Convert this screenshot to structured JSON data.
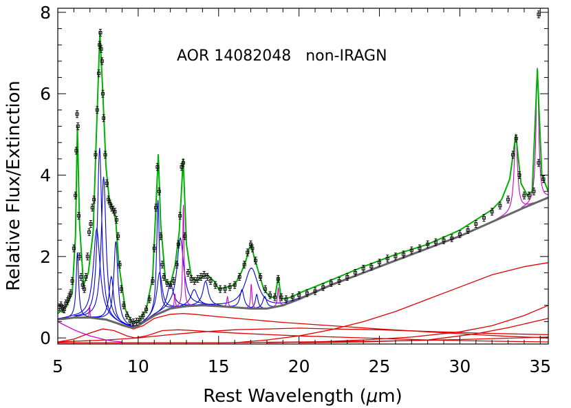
{
  "chart_data": {
    "type": "line",
    "annotation": "AOR 14082048   non-IRAGN",
    "xlabel_prefix": "Rest Wavelength (",
    "xlabel_mu": "μ",
    "xlabel_suffix": "m)",
    "ylabel": "Relative Flux/Extinction",
    "xlim": [
      5,
      35.5
    ],
    "ylim": [
      -0.15,
      8.1
    ],
    "xticks": [
      5,
      10,
      15,
      20,
      25,
      30,
      35
    ],
    "yticks": [
      0,
      2,
      4,
      6,
      8
    ],
    "grid": false,
    "legend": "none",
    "colors": {
      "total_model": "#00b000",
      "pah_features": "#0000dd",
      "emission_lines": "#cc00cc",
      "continuum_total": "#666666",
      "continuum_components": "#dd0000",
      "data_points": "#000000"
    },
    "series": [
      {
        "role": "continuum_total",
        "x": [
          5,
          6,
          7,
          8,
          9,
          9.6,
          10,
          11,
          12,
          13,
          14,
          15,
          16,
          17,
          18,
          19,
          20,
          22,
          24,
          26,
          28,
          30,
          32,
          34,
          35.5
        ],
        "y": [
          0.45,
          0.5,
          0.5,
          0.45,
          0.32,
          0.25,
          0.3,
          0.55,
          0.72,
          0.78,
          0.8,
          0.78,
          0.75,
          0.72,
          0.72,
          0.8,
          0.95,
          1.3,
          1.6,
          1.9,
          2.2,
          2.5,
          2.85,
          3.2,
          3.45
        ]
      },
      {
        "role": "total_model",
        "x": [
          5,
          5.5,
          5.9,
          6.1,
          6.22,
          6.35,
          6.6,
          6.9,
          7.2,
          7.4,
          7.62,
          7.8,
          8.0,
          8.2,
          8.4,
          8.6,
          8.8,
          9.2,
          9.6,
          10.0,
          10.5,
          10.9,
          11.1,
          11.25,
          11.4,
          11.7,
          12.0,
          12.3,
          12.55,
          12.8,
          13.0,
          13.3,
          13.6,
          14.0,
          14.3,
          14.7,
          15.0,
          15.5,
          16.0,
          16.4,
          16.7,
          16.9,
          17.03,
          17.2,
          17.5,
          17.8,
          18.2,
          18.5,
          18.71,
          18.9,
          19.5,
          20,
          22,
          24,
          26,
          28,
          30,
          31,
          32,
          32.6,
          33.1,
          33.48,
          33.8,
          34.2,
          34.5,
          34.82,
          35.1,
          35.5
        ],
        "y": [
          0.6,
          0.75,
          1.1,
          2.5,
          5.2,
          2.8,
          1.3,
          1.6,
          2.6,
          5.0,
          7.5,
          6.0,
          4.2,
          3.4,
          3.2,
          2.9,
          1.8,
          0.7,
          0.4,
          0.38,
          0.7,
          1.5,
          3.2,
          4.5,
          2.8,
          1.4,
          1.3,
          1.8,
          2.6,
          4.4,
          2.3,
          1.5,
          1.4,
          1.5,
          1.55,
          1.4,
          1.2,
          1.25,
          1.3,
          1.6,
          1.9,
          2.2,
          2.3,
          2.0,
          1.6,
          1.2,
          1.0,
          1.0,
          1.5,
          0.95,
          1.0,
          1.1,
          1.42,
          1.75,
          2.05,
          2.3,
          2.65,
          2.9,
          3.15,
          3.4,
          3.9,
          5.0,
          3.8,
          3.5,
          3.6,
          6.6,
          4.0,
          3.6
        ]
      }
    ],
    "pah_features": [
      {
        "center": 6.22,
        "height": 1.6,
        "width": 0.18
      },
      {
        "center": 7.42,
        "height": 2.2,
        "width": 0.5
      },
      {
        "center": 7.6,
        "height": 4.2,
        "width": 0.32
      },
      {
        "center": 7.85,
        "height": 3.5,
        "width": 0.35
      },
      {
        "center": 8.33,
        "height": 1.1,
        "width": 0.35
      },
      {
        "center": 8.61,
        "height": 2.0,
        "width": 0.3
      },
      {
        "center": 11.23,
        "height": 2.8,
        "width": 0.2
      },
      {
        "center": 11.33,
        "height": 1.0,
        "width": 0.4
      },
      {
        "center": 12.0,
        "height": 0.6,
        "width": 0.5
      },
      {
        "center": 12.62,
        "height": 1.7,
        "width": 0.5
      },
      {
        "center": 13.48,
        "height": 0.4,
        "width": 0.5
      },
      {
        "center": 14.19,
        "height": 0.6,
        "width": 0.4
      },
      {
        "center": 16.45,
        "height": 0.45,
        "width": 0.3
      },
      {
        "center": 17.04,
        "height": 1.0,
        "width": 1.0
      },
      {
        "center": 17.37,
        "height": 0.35,
        "width": 0.2
      },
      {
        "center": 17.87,
        "height": 0.3,
        "width": 0.3
      }
    ],
    "emission_lines": [
      {
        "center": 6.98,
        "height": 0.3,
        "width": 0.05
      },
      {
        "center": 9.66,
        "height": 0.1,
        "width": 0.05
      },
      {
        "center": 12.28,
        "height": 0.35,
        "width": 0.08
      },
      {
        "center": 12.81,
        "height": 2.5,
        "width": 0.1
      },
      {
        "center": 15.55,
        "height": 0.25,
        "width": 0.1
      },
      {
        "center": 17.03,
        "height": 0.6,
        "width": 0.1
      },
      {
        "center": 18.71,
        "height": 0.45,
        "width": 0.12
      },
      {
        "center": 33.48,
        "height": 1.9,
        "width": 0.25
      },
      {
        "center": 34.82,
        "height": 3.3,
        "width": 0.2
      }
    ],
    "continuum_components": [
      {
        "x": [
          5,
          6,
          7,
          7.8,
          8.5,
          9.3,
          9.8,
          10.5,
          11.5,
          12.5,
          13.5,
          15,
          17,
          20,
          24,
          28,
          32,
          35.5
        ],
        "y": [
          -0.1,
          -0.03,
          0.12,
          0.22,
          0.18,
          0.05,
          0.0,
          0.05,
          0.18,
          0.2,
          0.18,
          0.14,
          0.1,
          0.05,
          0.0,
          -0.05,
          -0.08,
          -0.1
        ]
      },
      {
        "x": [
          5,
          6,
          7,
          8,
          9,
          9.7,
          10.3,
          11,
          12,
          12.8,
          13.5,
          15,
          17,
          19,
          22,
          25,
          28,
          31,
          33,
          35.5
        ],
        "y": [
          0.45,
          0.5,
          0.5,
          0.46,
          0.3,
          0.22,
          0.3,
          0.48,
          0.58,
          0.6,
          0.58,
          0.52,
          0.45,
          0.38,
          0.3,
          0.22,
          0.15,
          0.08,
          0.04,
          0.0
        ]
      },
      {
        "x": [
          5,
          8,
          10,
          12,
          14,
          16,
          18,
          20,
          22,
          25,
          28,
          31,
          33,
          35.5
        ],
        "y": [
          -0.1,
          -0.05,
          0.0,
          0.08,
          0.15,
          0.2,
          0.22,
          0.24,
          0.22,
          0.2,
          0.16,
          0.12,
          0.1,
          0.08
        ]
      },
      {
        "x": [
          16,
          18,
          20,
          22,
          24,
          26,
          28,
          30,
          32,
          34,
          35.5
        ],
        "y": [
          -0.12,
          -0.05,
          0.05,
          0.2,
          0.4,
          0.65,
          0.95,
          1.25,
          1.55,
          1.75,
          1.85
        ]
      },
      {
        "x": [
          18,
          21,
          24,
          27,
          30,
          32,
          34,
          35.5
        ],
        "y": [
          -0.12,
          -0.1,
          -0.05,
          0.02,
          0.15,
          0.3,
          0.55,
          0.8
        ]
      },
      {
        "x": [
          20,
          24,
          28,
          31,
          33,
          35.5
        ],
        "y": [
          -0.12,
          -0.1,
          -0.05,
          0.1,
          0.25,
          0.48
        ]
      },
      {
        "x": [
          5,
          10,
          15,
          20,
          25,
          30,
          35.5
        ],
        "y": [
          -0.12,
          -0.12,
          -0.12,
          -0.1,
          -0.08,
          -0.04,
          0.02
        ]
      }
    ],
    "magenta_baseline": {
      "x": [
        5,
        5.5,
        6,
        6.5,
        7,
        7.5,
        8,
        8.5,
        9
      ],
      "y": [
        0.4,
        0.3,
        0.2,
        0.12,
        0.05,
        0.0,
        -0.05,
        -0.08,
        -0.1
      ]
    },
    "data_points": {
      "x": [
        5.1,
        5.2,
        5.3,
        5.4,
        5.5,
        5.6,
        5.7,
        5.8,
        5.9,
        6.0,
        6.1,
        6.15,
        6.2,
        6.25,
        6.3,
        6.35,
        6.45,
        6.55,
        6.65,
        6.75,
        6.85,
        6.95,
        7.05,
        7.15,
        7.25,
        7.35,
        7.45,
        7.55,
        7.6,
        7.65,
        7.7,
        7.75,
        7.8,
        7.85,
        7.95,
        8.05,
        8.15,
        8.25,
        8.35,
        8.45,
        8.55,
        8.65,
        8.75,
        8.85,
        8.95,
        9.1,
        9.3,
        9.5,
        9.7,
        9.9,
        10.1,
        10.3,
        10.5,
        10.7,
        10.9,
        11.0,
        11.1,
        11.2,
        11.3,
        11.4,
        11.5,
        11.6,
        11.8,
        12.0,
        12.2,
        12.4,
        12.5,
        12.6,
        12.7,
        12.8,
        12.9,
        13.1,
        13.3,
        13.5,
        13.7,
        13.9,
        14.1,
        14.3,
        14.5,
        14.8,
        15.1,
        15.4,
        15.7,
        16.0,
        16.3,
        16.6,
        16.8,
        17.0,
        17.1,
        17.3,
        17.6,
        17.9,
        18.2,
        18.5,
        18.7,
        18.9,
        19.2,
        19.6,
        20.0,
        20.5,
        21.0,
        21.5,
        22.0,
        22.5,
        23.0,
        23.5,
        24.0,
        24.5,
        25.0,
        25.5,
        26.0,
        26.5,
        27.0,
        27.5,
        28.0,
        28.5,
        29.0,
        29.5,
        30.0,
        30.5,
        31.0,
        31.5,
        32.0,
        32.5,
        33.0,
        33.3,
        33.5,
        33.7,
        34.0,
        34.3,
        34.6,
        34.9,
        35.2
      ],
      "y": [
        0.75,
        0.8,
        0.72,
        0.7,
        0.85,
        0.9,
        1.0,
        1.1,
        1.4,
        2.2,
        3.5,
        4.6,
        5.5,
        5.2,
        3.0,
        2.0,
        1.5,
        1.3,
        1.2,
        1.5,
        2.0,
        2.6,
        2.8,
        3.2,
        3.4,
        4.5,
        5.6,
        6.5,
        7.2,
        7.5,
        7.1,
        6.8,
        6.0,
        5.4,
        4.5,
        3.8,
        3.4,
        3.3,
        3.2,
        3.15,
        3.1,
        2.9,
        2.5,
        1.8,
        1.2,
        0.8,
        0.55,
        0.42,
        0.38,
        0.4,
        0.45,
        0.55,
        0.7,
        0.95,
        1.4,
        2.2,
        3.2,
        4.2,
        3.6,
        2.5,
        1.8,
        1.5,
        1.35,
        1.3,
        1.4,
        1.8,
        2.3,
        3.0,
        4.2,
        4.3,
        2.5,
        1.6,
        1.45,
        1.4,
        1.45,
        1.5,
        1.55,
        1.5,
        1.4,
        1.3,
        1.2,
        1.2,
        1.25,
        1.3,
        1.5,
        1.8,
        2.1,
        2.3,
        2.2,
        1.9,
        1.5,
        1.2,
        1.05,
        1.0,
        1.45,
        1.0,
        0.95,
        1.0,
        1.05,
        1.1,
        1.15,
        1.25,
        1.35,
        1.4,
        1.5,
        1.6,
        1.7,
        1.75,
        1.85,
        1.95,
        2.0,
        2.05,
        2.15,
        2.2,
        2.3,
        2.35,
        2.4,
        2.45,
        2.55,
        2.65,
        2.8,
        2.95,
        3.1,
        3.25,
        3.4,
        4.5,
        4.9,
        4.0,
        3.5,
        3.5,
        3.6,
        4.3,
        3.9
      ]
    },
    "outlier_point": {
      "x": 34.9,
      "y": 7.95
    }
  }
}
